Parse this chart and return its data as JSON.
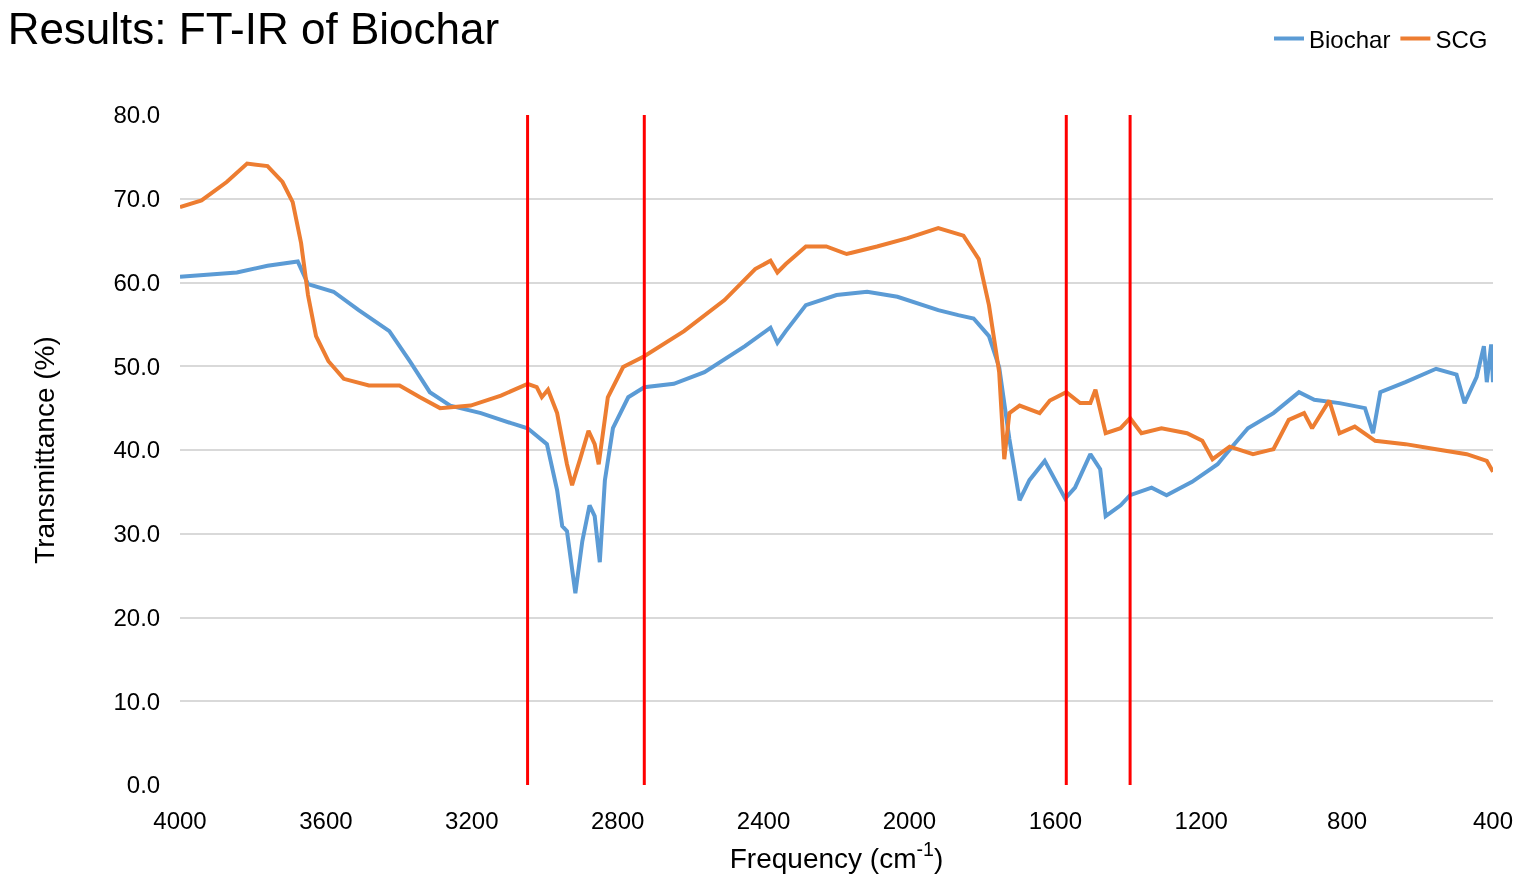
{
  "chart_data": {
    "type": "line",
    "title": "Results: FT-IR of Biochar",
    "xlabel": "Frequency (cm$^{-1}$)",
    "ylabel": "Transmittance (%)",
    "xlim": [
      4000,
      400
    ],
    "xticks": [
      4000,
      3600,
      3200,
      2800,
      2400,
      2000,
      1600,
      1200,
      800,
      400
    ],
    "ylim": [
      0,
      80
    ],
    "yticks": [
      {
        "value": 0,
        "label": "0.0"
      },
      {
        "value": 10,
        "label": "10.0"
      },
      {
        "value": 20,
        "label": "20.0"
      },
      {
        "value": 30,
        "label": "30.0"
      },
      {
        "value": 40,
        "label": "40.0"
      },
      {
        "value": 50,
        "label": "50.0"
      },
      {
        "value": 60,
        "label": "60.0"
      },
      {
        "value": 70,
        "label": "70.0"
      },
      {
        "value": 80,
        "label": "80.0"
      }
    ],
    "grid": "y",
    "legend": "top right",
    "marker": "none",
    "line_style": "solid",
    "ref_lines": [
      {
        "axis": "x",
        "value": 3047,
        "color": "#ff0000"
      },
      {
        "axis": "x",
        "value": 2727,
        "color": "#ff0000"
      },
      {
        "axis": "x",
        "value": 1570,
        "color": "#ff0000"
      },
      {
        "axis": "x",
        "value": 1395,
        "color": "#ff0000"
      }
    ],
    "series": [
      {
        "name": "Biochar",
        "color": "#5b9bd5",
        "x": [
          4000,
          3844,
          3760,
          3677,
          3649,
          3579,
          3510,
          3426,
          3370,
          3315,
          3259,
          3175,
          3092,
          3047,
          2994,
          2966,
          2952,
          2939,
          2916,
          2897,
          2877,
          2863,
          2849,
          2835,
          2813,
          2771,
          2727,
          2646,
          2562,
          2451,
          2381,
          2362,
          2339,
          2284,
          2200,
          2116,
          2033,
          1921,
          1866,
          1824,
          1782,
          1754,
          1726,
          1698,
          1671,
          1629,
          1573,
          1546,
          1504,
          1477,
          1462,
          1421,
          1395,
          1336,
          1295,
          1225,
          1155,
          1113,
          1072,
          1002,
          932,
          890,
          821,
          751,
          729,
          709,
          640,
          556,
          500,
          478,
          445,
          425,
          417,
          405,
          400
        ],
        "values": [
          60.7,
          61.2,
          62.0,
          62.5,
          59.8,
          58.9,
          56.7,
          54.2,
          50.6,
          46.9,
          45.3,
          44.4,
          43.2,
          42.6,
          40.7,
          35.2,
          30.9,
          30.3,
          22.9,
          29.1,
          33.4,
          32.1,
          26.6,
          36.4,
          42.6,
          46.3,
          47.5,
          47.9,
          49.3,
          52.4,
          54.6,
          52.8,
          54.2,
          57.3,
          58.5,
          58.9,
          58.3,
          56.7,
          56.1,
          55.7,
          53.6,
          49.9,
          41.3,
          34.0,
          36.4,
          38.7,
          34.2,
          35.5,
          39.5,
          37.7,
          32.1,
          33.4,
          34.6,
          35.5,
          34.6,
          36.2,
          38.3,
          40.5,
          42.6,
          44.4,
          46.9,
          46.0,
          45.6,
          45.0,
          42.0,
          46.9,
          48.1,
          49.7,
          49.0,
          45.6,
          48.7,
          52.4,
          48.1,
          52.6,
          48.1
        ]
      },
      {
        "name": "SCG",
        "color": "#ed7d31",
        "x": [
          4000,
          3941,
          3872,
          3816,
          3760,
          3719,
          3691,
          3668,
          3649,
          3627,
          3593,
          3551,
          3482,
          3398,
          3342,
          3287,
          3203,
          3120,
          3047,
          3022,
          3008,
          2991,
          2966,
          2939,
          2925,
          2903,
          2880,
          2863,
          2852,
          2827,
          2785,
          2727,
          2618,
          2507,
          2423,
          2381,
          2362,
          2339,
          2284,
          2228,
          2172,
          2089,
          2005,
          1921,
          1852,
          1810,
          1782,
          1754,
          1740,
          1726,
          1698,
          1643,
          1615,
          1570,
          1532,
          1504,
          1490,
          1462,
          1421,
          1395,
          1364,
          1309,
          1239,
          1197,
          1169,
          1122,
          1058,
          1002,
          960,
          918,
          896,
          849,
          821,
          779,
          723,
          640,
          556,
          472,
          417,
          400
        ],
        "values": [
          69.0,
          69.8,
          72.0,
          74.2,
          73.9,
          72.0,
          69.6,
          64.7,
          58.5,
          53.6,
          50.6,
          48.5,
          47.7,
          47.7,
          46.3,
          45.0,
          45.3,
          46.5,
          47.9,
          47.5,
          46.3,
          47.2,
          44.4,
          38.3,
          35.8,
          38.9,
          42.3,
          40.7,
          38.3,
          46.3,
          49.9,
          51.2,
          54.2,
          57.9,
          61.6,
          62.6,
          61.2,
          62.2,
          64.3,
          64.3,
          63.4,
          64.3,
          65.3,
          66.5,
          65.6,
          62.8,
          57.3,
          49.3,
          38.9,
          44.4,
          45.3,
          44.4,
          45.9,
          46.9,
          45.6,
          45.6,
          47.2,
          42.0,
          42.6,
          43.8,
          42.0,
          42.6,
          42.0,
          41.1,
          38.9,
          40.4,
          39.5,
          40.1,
          43.6,
          44.4,
          42.6,
          45.9,
          42.0,
          42.8,
          41.1,
          40.7,
          40.1,
          39.5,
          38.7,
          37.4
        ]
      }
    ]
  }
}
